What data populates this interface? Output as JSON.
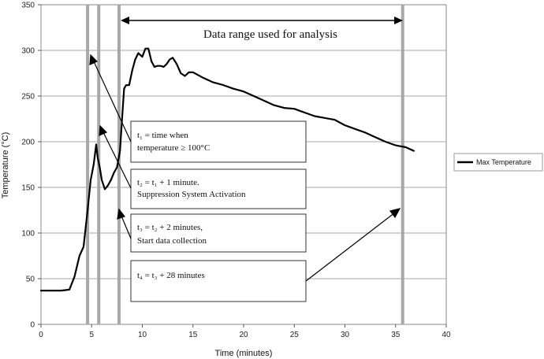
{
  "chart_data": {
    "type": "line",
    "xlabel": "Time (minutes)",
    "ylabel": "Temperature (°C)",
    "xlim": [
      0,
      40
    ],
    "ylim": [
      0,
      350
    ],
    "xticks": [
      0,
      5,
      10,
      15,
      20,
      25,
      30,
      35,
      40
    ],
    "yticks": [
      0,
      50,
      100,
      150,
      200,
      250,
      300,
      350
    ],
    "grid": "horizontal",
    "legend": "right",
    "series": [
      {
        "name": "Max Temperature",
        "color": "#000000",
        "x": [
          0,
          1,
          2,
          2.8,
          3.3,
          3.8,
          4.2,
          4.6,
          4.9,
          5.2,
          5.45,
          5.6,
          5.8,
          6.0,
          6.3,
          6.6,
          6.9,
          7.2,
          7.5,
          7.8,
          8.0,
          8.2,
          8.4,
          8.7,
          9.0,
          9.3,
          9.6,
          10.0,
          10.3,
          10.6,
          10.9,
          11.2,
          11.5,
          11.8,
          12.1,
          12.4,
          12.7,
          13.0,
          13.4,
          13.8,
          14.2,
          14.6,
          15.0,
          16,
          17,
          18,
          19,
          20,
          21,
          22,
          23,
          24,
          25,
          26,
          27,
          28,
          29,
          30,
          31,
          32,
          33,
          34,
          35,
          36,
          36.8
        ],
        "y": [
          37,
          37,
          37,
          38,
          52,
          75,
          85,
          125,
          158,
          175,
          197,
          182,
          172,
          158,
          148,
          152,
          158,
          166,
          172,
          190,
          225,
          258,
          262,
          262,
          278,
          290,
          297,
          293,
          302,
          302,
          288,
          282,
          283,
          283,
          282,
          285,
          290,
          292,
          285,
          275,
          272,
          276,
          276,
          270,
          265,
          262,
          258,
          255,
          250,
          245,
          240,
          237,
          236,
          232,
          228,
          226,
          224,
          218,
          214,
          210,
          205,
          200,
          196,
          194,
          190
        ]
      }
    ],
    "vertical_markers": [
      {
        "name": "t1",
        "x": 4.6
      },
      {
        "name": "t2",
        "x": 5.7
      },
      {
        "name": "t3",
        "x": 7.7
      },
      {
        "name": "t4",
        "x": 35.7
      }
    ],
    "range_annotation": {
      "label": "Data range used for analysis",
      "x_start": 7.7,
      "x_end": 35.7
    },
    "notes": [
      {
        "line1": "t₁ = time when",
        "line2": "temperature ≥  100°C"
      },
      {
        "line1": "t₂ = t₁ + 1 minute.",
        "line2": "Suppression System Activation"
      },
      {
        "line1": "t₃ = t₂ + 2 minutes,",
        "line2": "Start data collection"
      },
      {
        "line1": "t₄ = t₃ + 28 minutes",
        "line2": ""
      }
    ]
  }
}
